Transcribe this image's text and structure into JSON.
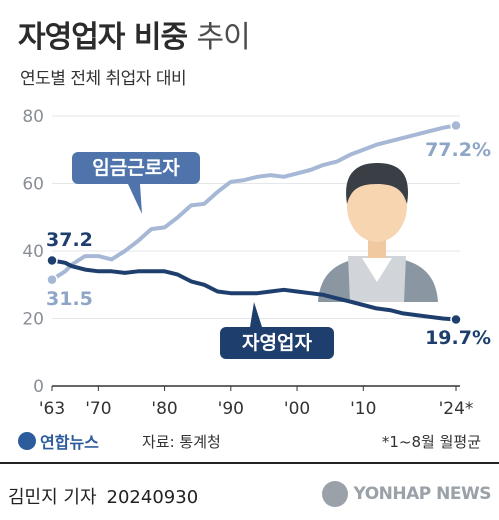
{
  "header": {
    "title_main": "자영업자 비중",
    "title_light": "추이",
    "subtitle": "연도별 전체 취업자 대비"
  },
  "chart_data": {
    "type": "line",
    "x": [
      1963,
      1965,
      1966,
      1968,
      1970,
      1972,
      1974,
      1976,
      1978,
      1980,
      1982,
      1984,
      1986,
      1988,
      1990,
      1992,
      1994,
      1996,
      1998,
      2000,
      2002,
      2004,
      2006,
      2008,
      2010,
      2012,
      2014,
      2016,
      2018,
      2020,
      2022,
      2024
    ],
    "x_tick_labels": [
      "'63",
      "'70",
      "'80",
      "'90",
      "'00",
      "'10",
      "'24*"
    ],
    "x_ticks": [
      1963,
      1970,
      1980,
      1990,
      2000,
      2010,
      2024
    ],
    "y_ticks": [
      0,
      20,
      40,
      60,
      80
    ],
    "ylim": [
      0,
      80
    ],
    "xlim": [
      1963,
      2024
    ],
    "series": [
      {
        "name": "임금근로자",
        "color": "#a6b8d6",
        "values": [
          31.5,
          34.0,
          36.0,
          38.5,
          38.5,
          37.5,
          40.0,
          43.0,
          46.5,
          47.0,
          50.0,
          53.5,
          54.0,
          57.5,
          60.5,
          61.0,
          62.0,
          62.5,
          62.0,
          63.0,
          64.0,
          65.5,
          66.5,
          68.5,
          70.0,
          71.5,
          72.5,
          73.5,
          74.5,
          75.5,
          76.5,
          77.2
        ],
        "start_label": "31.5",
        "end_label": "77.2%"
      },
      {
        "name": "자영업자",
        "color": "#1e3f6e",
        "values": [
          37.2,
          36.5,
          35.5,
          34.5,
          34.0,
          34.0,
          33.5,
          34.0,
          34.0,
          34.0,
          33.0,
          31.0,
          30.0,
          28.0,
          27.5,
          27.5,
          27.5,
          28.0,
          28.5,
          28.0,
          27.5,
          27.0,
          26.0,
          25.0,
          24.0,
          23.0,
          22.5,
          21.5,
          21.0,
          20.5,
          20.0,
          19.7
        ],
        "start_label": "37.2",
        "end_label": "19.7%"
      }
    ]
  },
  "footer": {
    "logo_text": "연합뉴스",
    "source": "자료: 통계청",
    "note": "*1~8월 월평균",
    "reporter": "김민지 기자",
    "date": "20240930",
    "agency": "YONHAP NEWS"
  }
}
